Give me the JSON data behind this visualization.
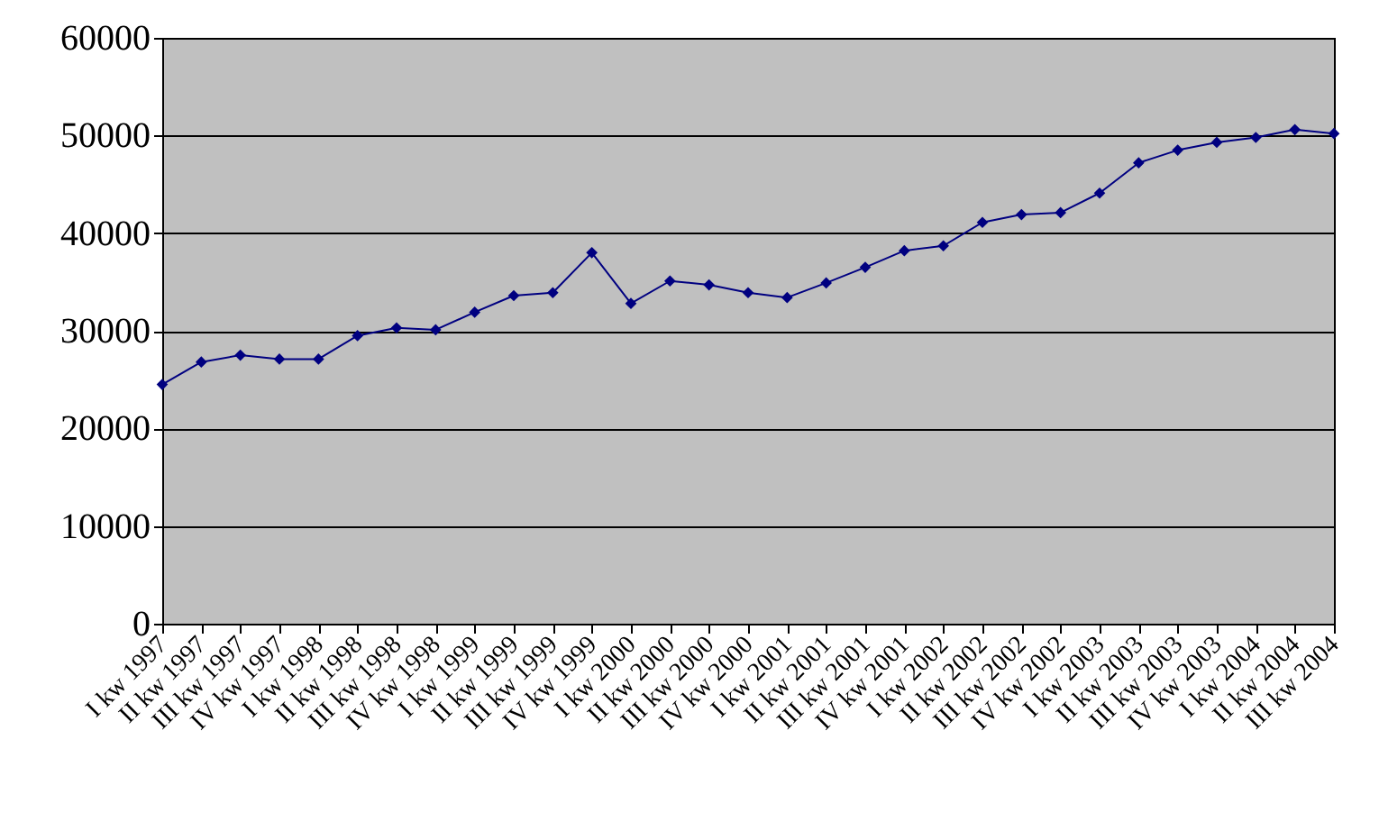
{
  "chart_data": {
    "type": "line",
    "categories": [
      "I kw 1997",
      "II kw 1997",
      "III kw 1997",
      "IV kw 1997",
      "I kw 1998",
      "II kw 1998",
      "III kw 1998",
      "IV kw 1998",
      "I kw 1999",
      "II kw 1999",
      "III kw 1999",
      "IV kw 1999",
      "I kw 2000",
      "II kw 2000",
      "III kw 2000",
      "IV kw 2000",
      "I kw 2001",
      "II kw 2001",
      "III kw 2001",
      "IV kw 2001",
      "I kw 2002",
      "II kw 2002",
      "III kw 2002",
      "IV kw 2002",
      "I kw 2003",
      "II kw 2003",
      "III kw 2003",
      "IV kw 2003",
      "I kw 2004",
      "II kw 2004",
      "III kw 2004"
    ],
    "series": [
      {
        "color": "#000080",
        "values": [
          24500,
          26800,
          27500,
          27100,
          27100,
          29500,
          30300,
          30100,
          31900,
          33600,
          33900,
          38000,
          32800,
          35100,
          34700,
          33900,
          33400,
          34900,
          36500,
          38200,
          38700,
          41100,
          41900,
          42100,
          44100,
          47200,
          48500,
          49300,
          49800,
          50600,
          50200
        ]
      }
    ],
    "ylim": [
      0,
      60000
    ],
    "yticks": [
      0,
      10000,
      20000,
      30000,
      40000,
      50000,
      60000
    ],
    "grid": "y",
    "marker": "diamond",
    "line_style": "solid",
    "legend": false
  }
}
